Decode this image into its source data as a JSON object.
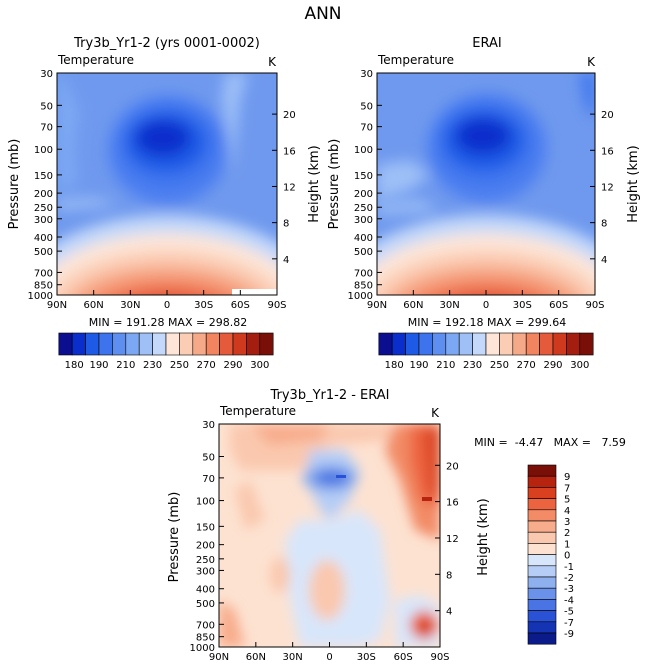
{
  "main_title": "ANN",
  "chart_data": [
    {
      "type": "heatmap",
      "title": "Try3b_Yr1-2 (yrs 0001-0002)",
      "variable": "Temperature",
      "units": "K",
      "ylabel": "Pressure (mb)",
      "ylabel_right": "Height (km)",
      "x_ticks": [
        "90N",
        "60N",
        "30N",
        "0",
        "30S",
        "60S",
        "90S"
      ],
      "y_ticks": [
        30,
        50,
        70,
        100,
        150,
        200,
        250,
        300,
        400,
        500,
        700,
        850,
        1000
      ],
      "height_ticks": [
        4,
        8,
        12,
        16,
        20
      ],
      "ylim": [
        1000,
        30
      ],
      "stats_text": "MIN = 191.28   MAX = 298.82",
      "min": 191.28,
      "max": 298.82,
      "colorbar_labels": [
        "180",
        "190",
        "210",
        "230",
        "250",
        "270",
        "290",
        "300"
      ]
    },
    {
      "type": "heatmap",
      "title": "ERAI",
      "variable": "Temperature",
      "units": "K",
      "ylabel": "Pressure (mb)",
      "ylabel_right": "Height (km)",
      "x_ticks": [
        "90N",
        "60N",
        "30N",
        "0",
        "30S",
        "60S",
        "90S"
      ],
      "y_ticks": [
        30,
        50,
        70,
        100,
        150,
        200,
        250,
        300,
        400,
        500,
        700,
        850,
        1000
      ],
      "height_ticks": [
        4,
        8,
        12,
        16,
        20
      ],
      "ylim": [
        1000,
        30
      ],
      "stats_text": "MIN = 192.18   MAX = 299.64",
      "min": 192.18,
      "max": 299.64,
      "colorbar_labels": [
        "180",
        "190",
        "210",
        "230",
        "250",
        "270",
        "290",
        "300"
      ]
    },
    {
      "type": "heatmap",
      "title": "Try3b_Yr1-2 - ERAI",
      "variable": "Temperature",
      "units": "K",
      "ylabel": "Pressure (mb)",
      "ylabel_right": "Height (km)",
      "x_ticks": [
        "90N",
        "60N",
        "30N",
        "0",
        "30S",
        "60S",
        "90S"
      ],
      "y_ticks": [
        30,
        50,
        70,
        100,
        150,
        200,
        250,
        300,
        400,
        500,
        700,
        850,
        1000
      ],
      "height_ticks": [
        4,
        8,
        12,
        16,
        20
      ],
      "ylim": [
        1000,
        30
      ],
      "stats_text": "MIN =  -4.47   MAX =   7.59",
      "min": -4.47,
      "max": 7.59,
      "colorbar_labels": [
        "9",
        "7",
        "5",
        "4",
        "3",
        "2",
        "1",
        "0",
        "-1",
        "-2",
        "-3",
        "-4",
        "-5",
        "-7",
        "-9"
      ]
    }
  ],
  "colors": {
    "temp_scale": [
      "#0b0e8f",
      "#0a2ecc",
      "#1f5ae6",
      "#3d74ee",
      "#5e8ff0",
      "#7ba7f3",
      "#9ec0f7",
      "#c3d8fa",
      "#fde6d8",
      "#fbcdb5",
      "#f6a988",
      "#f28460",
      "#e45a3a",
      "#cf3a1f",
      "#a41d0e",
      "#7a0f08"
    ],
    "diff_scale": [
      "#7a0f08",
      "#b62410",
      "#d8401f",
      "#ec6340",
      "#f28b66",
      "#f7ac8b",
      "#fac8ae",
      "#fde2d1",
      "#d8e6fb",
      "#b6cdf6",
      "#8eb0ef",
      "#6b92ea",
      "#4a74e3",
      "#2a52d6",
      "#1534b4",
      "#0c1b8a"
    ]
  }
}
